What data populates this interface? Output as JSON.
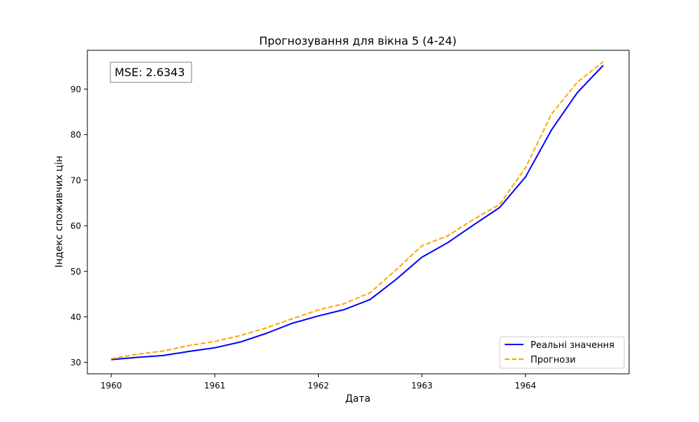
{
  "chart_data": {
    "type": "line",
    "title": "Прогнозування для вікна 5 (4-24)",
    "xlabel": "Дата",
    "ylabel": "Індекс споживчих цін",
    "x_ticks": [
      "1960",
      "1961",
      "1962",
      "1963",
      "1964"
    ],
    "y_ticks": [
      30,
      40,
      50,
      60,
      70,
      80,
      90
    ],
    "xlim": [
      1959.77,
      1965.0
    ],
    "ylim": [
      27.5,
      98.5
    ],
    "annotation": "MSE: 2.6343",
    "legend_position": "lower right",
    "grid": false,
    "x": [
      1960.0,
      1960.25,
      1960.5,
      1960.75,
      1961.0,
      1961.25,
      1961.5,
      1961.75,
      1962.0,
      1962.25,
      1962.5,
      1962.75,
      1963.0,
      1963.25,
      1963.5,
      1963.75,
      1964.0,
      1964.25,
      1964.5,
      1964.75
    ],
    "series": [
      {
        "name": "Реальні значення",
        "color": "#0000ff",
        "style": "solid",
        "values": [
          30.6,
          31.1,
          31.5,
          32.4,
          33.2,
          34.5,
          36.4,
          38.6,
          40.2,
          41.6,
          43.8,
          48.2,
          53.1,
          56.3,
          60.2,
          64.0,
          70.7,
          81.0,
          89.2,
          95.2
        ]
      },
      {
        "name": "Прогнози",
        "color": "#ffa500",
        "style": "dashed",
        "values": [
          30.8,
          31.8,
          32.5,
          33.7,
          34.6,
          35.9,
          37.6,
          39.6,
          41.5,
          42.9,
          45.3,
          50.3,
          55.6,
          57.8,
          61.4,
          64.7,
          72.7,
          84.5,
          91.5,
          96.0
        ]
      }
    ]
  }
}
